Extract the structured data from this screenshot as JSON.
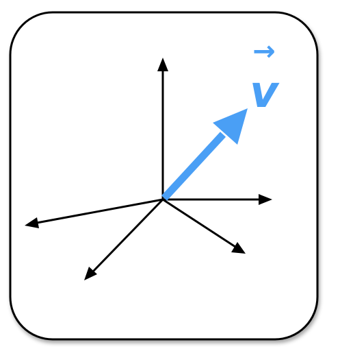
{
  "colors": {
    "background": "#ffffff",
    "frame_stroke": "#000000",
    "axes": "#000000",
    "vector": "#4a9ff5"
  },
  "vector": {
    "label": "v",
    "arrow_symbol": "→"
  },
  "icons": [
    "axes-icon",
    "vector-arrow-icon"
  ]
}
